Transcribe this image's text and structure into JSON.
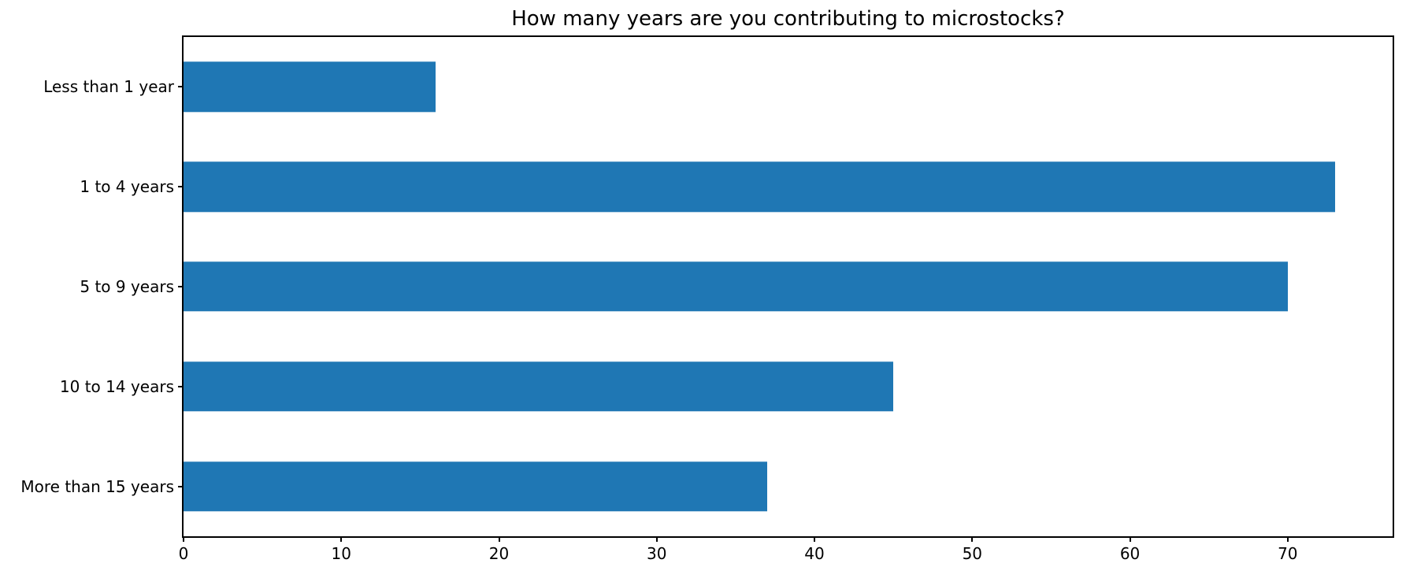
{
  "figure": {
    "background": "#ffffff",
    "spine_color": "#000000",
    "text_color": "#000000"
  },
  "chart_data": {
    "type": "bar",
    "orientation": "horizontal",
    "title": "How many years are you contributing to microstocks?",
    "categories": [
      "Less than 1 year",
      "1 to 4 years",
      "5 to 9 years",
      "10 to 14 years",
      "More than 15 years"
    ],
    "values": [
      16,
      73,
      70,
      45,
      37
    ],
    "bar_color": "#1f77b4",
    "bar_thickness_fraction": 0.5,
    "xlabel": "",
    "ylabel": "",
    "xlim": [
      0,
      76.65
    ],
    "xticks": [
      0,
      10,
      20,
      30,
      40,
      50,
      60,
      70
    ],
    "grid": false,
    "legend": null
  }
}
